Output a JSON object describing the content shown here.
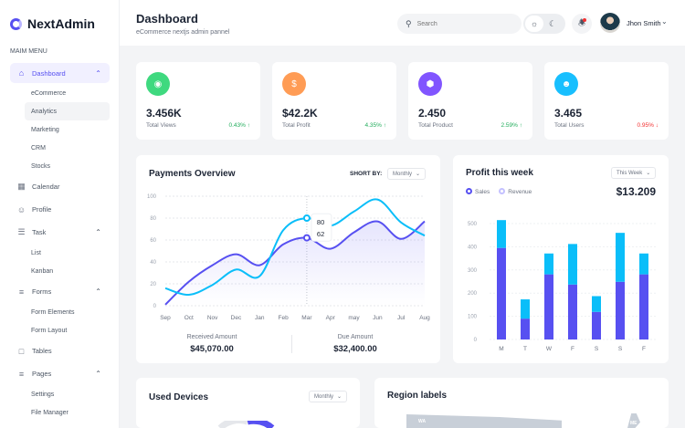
{
  "app": {
    "name": "NextAdmin"
  },
  "sidebar": {
    "menu_label": "MAIM MENU",
    "items": [
      {
        "label": "Dashboard",
        "icon": "home-icon",
        "expanded": true,
        "active": true,
        "children": [
          "eCommerce",
          "Analytics",
          "Marketing",
          "CRM",
          "Stocks"
        ],
        "selected_child": "Analytics"
      },
      {
        "label": "Calendar",
        "icon": "calendar-icon"
      },
      {
        "label": "Profile",
        "icon": "user-icon"
      },
      {
        "label": "Task",
        "icon": "task-list-icon",
        "expanded": true,
        "children": [
          "List",
          "Kanban"
        ]
      },
      {
        "label": "Forms",
        "icon": "forms-icon",
        "expanded": true,
        "children": [
          "Form Elements",
          "Form Layout"
        ]
      },
      {
        "label": "Tables",
        "icon": "table-icon"
      },
      {
        "label": "Pages",
        "icon": "pages-icon",
        "expanded": true,
        "children": [
          "Settings",
          "File Manager"
        ]
      }
    ]
  },
  "header": {
    "title": "Dashboard",
    "subtitle": "eCommerce nextjs admin pannel",
    "search_placeholder": "Search",
    "user_name": "Jhon Smith",
    "theme": "light"
  },
  "stats": [
    {
      "value": "3.456K",
      "label": "Total Views",
      "change": "0.43%",
      "direction": "up",
      "icon": "eye-icon",
      "color": "#3fd97f"
    },
    {
      "value": "$42.2K",
      "label": "Total Profit",
      "change": "4.35%",
      "direction": "up",
      "icon": "dollar-icon",
      "color": "#ff9c55"
    },
    {
      "value": "2.450",
      "label": "Total Product",
      "change": "2.59%",
      "direction": "up",
      "icon": "cube-icon",
      "color": "#8155ff"
    },
    {
      "value": "3.465",
      "label": "Total Users",
      "change": "0.95%",
      "direction": "down",
      "icon": "users-icon",
      "color": "#18bffe"
    }
  ],
  "colors": {
    "accent": "#5750f1",
    "cyan": "#0abef9",
    "up": "#22ad5c",
    "down": "#f23030"
  },
  "payments": {
    "title": "Payments Overview",
    "sort_label": "SHORT BY:",
    "sort_value": "Monthly",
    "received_label": "Received Amount",
    "received_value": "$45,070.00",
    "due_label": "Due Amount",
    "due_value": "$32,400.00",
    "tooltip": {
      "month": "Mar",
      "values": [
        "80",
        "62"
      ]
    }
  },
  "profit": {
    "title": "Profit this week",
    "period": "This Week",
    "total": "$13.209",
    "legend": [
      "Sales",
      "Revenue"
    ]
  },
  "devices": {
    "title": "Used Devices",
    "period": "Monthly"
  },
  "region": {
    "title": "Region labels",
    "labels": [
      "WA",
      "ME"
    ]
  },
  "chart_data": [
    {
      "type": "area",
      "categories": [
        "Sep",
        "Oct",
        "Nov",
        "Dec",
        "Jan",
        "Feb",
        "Mar",
        "Apr",
        "may",
        "Jun",
        "Jul",
        "Aug"
      ],
      "ylim": [
        0,
        100
      ],
      "yticks": [
        "0",
        "20",
        "40",
        "60",
        "80",
        "100"
      ],
      "grid": true,
      "series": [
        {
          "values": [
            16,
            10,
            19,
            33,
            27,
            69,
            80,
            73,
            86,
            97,
            76,
            64
          ],
          "color": "#0abef9"
        },
        {
          "values": [
            1,
            22,
            37,
            47,
            37,
            56,
            62,
            52,
            67,
            77,
            61,
            77
          ],
          "color": "#5750f1"
        }
      ]
    },
    {
      "type": "bar",
      "stacked": true,
      "categories": [
        "M",
        "T",
        "W",
        "F",
        "S",
        "S",
        "F"
      ],
      "ylim": [
        0,
        500
      ],
      "yticks": [
        "0",
        "100",
        "200",
        "300",
        "400",
        "500"
      ],
      "grid": true,
      "series": [
        {
          "name": "Sales",
          "values": [
            395,
            90,
            281,
            237,
            119,
            249,
            281
          ],
          "color": "#5750f1"
        },
        {
          "name": "Revenue",
          "values": [
            120,
            83,
            90,
            175,
            68,
            211,
            90
          ],
          "color": "#0abef9"
        }
      ]
    }
  ]
}
